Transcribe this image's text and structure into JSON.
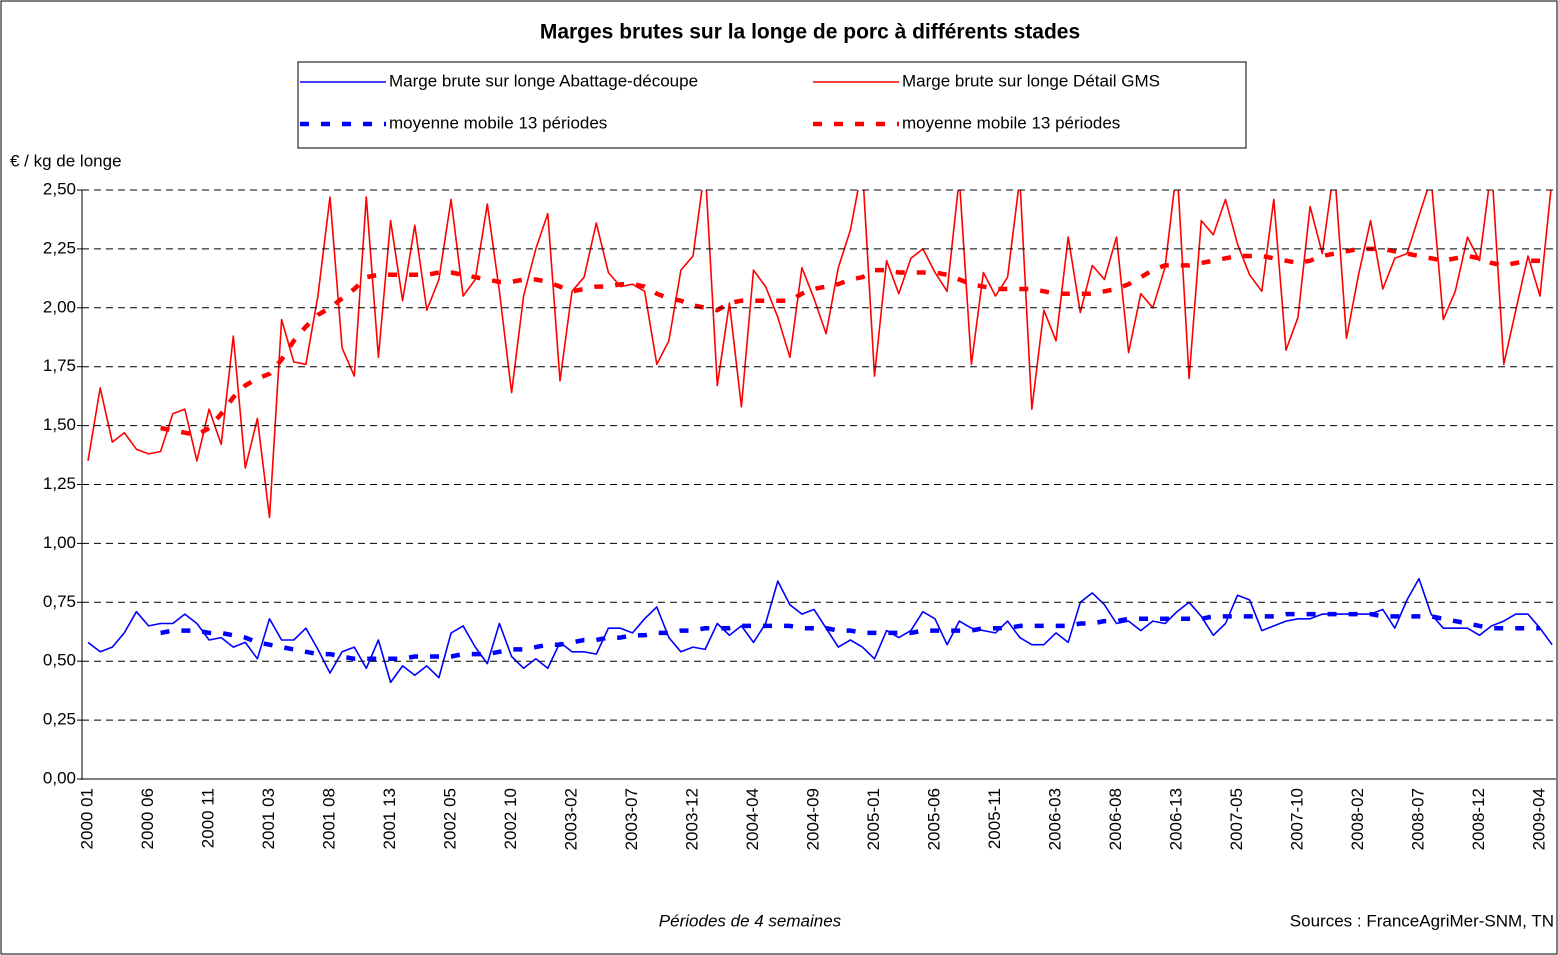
{
  "chart_data": {
    "type": "line",
    "title": "Marges brutes sur la longe de porc à différents stades",
    "y_label": "€ / kg de longe",
    "x_label": "Périodes de 4 semaines",
    "source": "Sources : FranceAgriMer-SNM, TN",
    "categories": [
      "2000 01",
      null,
      null,
      null,
      null,
      "2000 06",
      null,
      null,
      null,
      null,
      "2000 11",
      null,
      null,
      null,
      null,
      "2001 03",
      null,
      null,
      null,
      null,
      "2001 08",
      null,
      null,
      null,
      null,
      "2001 13",
      null,
      null,
      null,
      null,
      "2002 05",
      null,
      null,
      null,
      null,
      "2002 10",
      null,
      null,
      null,
      null,
      "2003-02",
      null,
      null,
      null,
      null,
      "2003-07",
      null,
      null,
      null,
      null,
      "2003-12",
      null,
      null,
      null,
      null,
      "2004-04",
      null,
      null,
      null,
      null,
      "2004-09",
      null,
      null,
      null,
      null,
      "2005-01",
      null,
      null,
      null,
      null,
      "2005-06",
      null,
      null,
      null,
      null,
      "2005-11",
      null,
      null,
      null,
      null,
      "2006-03",
      null,
      null,
      null,
      null,
      "2006-08",
      null,
      null,
      null,
      null,
      "2006-13",
      null,
      null,
      null,
      null,
      "2007-05",
      null,
      null,
      null,
      null,
      "2007-10",
      null,
      null,
      null,
      null,
      "2008-02",
      null,
      null,
      null,
      null,
      "2008-07",
      null,
      null,
      null,
      null,
      "2008-12",
      null,
      null,
      null,
      null,
      "2009-04",
      null
    ],
    "series": [
      {
        "name": "Marge brute sur longe Abattage-découpe",
        "color": "#0000ff",
        "style": "solid",
        "values": [
          0.58,
          0.54,
          0.56,
          0.62,
          0.71,
          0.65,
          0.66,
          0.66,
          0.7,
          0.66,
          0.59,
          0.6,
          0.56,
          0.58,
          0.51,
          0.68,
          0.59,
          0.59,
          0.64,
          0.55,
          0.45,
          0.54,
          0.56,
          0.47,
          0.59,
          0.41,
          0.48,
          0.44,
          0.48,
          0.43,
          0.62,
          0.65,
          0.56,
          0.49,
          0.66,
          0.52,
          0.47,
          0.51,
          0.47,
          0.58,
          0.54,
          0.54,
          0.53,
          0.64,
          0.64,
          0.62,
          0.68,
          0.73,
          0.6,
          0.54,
          0.56,
          0.55,
          0.66,
          0.61,
          0.65,
          0.58,
          0.66,
          0.84,
          0.74,
          0.7,
          0.72,
          0.64,
          0.56,
          0.59,
          0.56,
          0.51,
          0.63,
          0.6,
          0.63,
          0.71,
          0.68,
          0.57,
          0.67,
          0.64,
          0.63,
          0.62,
          0.67,
          0.6,
          0.57,
          0.57,
          0.62,
          0.58,
          0.75,
          0.79,
          0.74,
          0.66,
          0.67,
          0.63,
          0.67,
          0.66,
          0.71,
          0.75,
          0.69,
          0.61,
          0.66,
          0.78,
          0.76,
          0.63,
          0.65,
          0.67,
          0.68,
          0.68,
          0.7,
          0.7,
          0.7,
          0.7,
          0.7,
          0.72,
          0.64,
          0.76,
          0.85,
          0.7,
          0.64,
          0.64,
          0.64,
          0.61,
          0.65,
          0.67,
          0.7,
          0.7,
          0.64,
          0.57
        ]
      },
      {
        "name": "Marge brute sur longe Détail GMS",
        "color": "#ff0000",
        "style": "solid",
        "values": [
          1.35,
          1.66,
          1.43,
          1.47,
          1.4,
          1.38,
          1.39,
          1.55,
          1.57,
          1.35,
          1.57,
          1.42,
          1.88,
          1.32,
          1.53,
          1.11,
          1.95,
          1.77,
          1.76,
          2.05,
          2.47,
          1.83,
          1.71,
          2.47,
          1.79,
          2.37,
          2.03,
          2.35,
          1.99,
          2.12,
          2.46,
          2.05,
          2.12,
          2.44,
          2.07,
          1.64,
          2.05,
          2.25,
          2.4,
          1.69,
          2.07,
          2.13,
          2.36,
          2.15,
          2.09,
          2.1,
          2.07,
          1.76,
          1.86,
          2.16,
          2.22,
          2.6,
          1.67,
          2.02,
          1.58,
          2.16,
          2.09,
          1.96,
          1.79,
          2.17,
          2.04,
          1.89,
          2.17,
          2.33,
          2.6,
          1.71,
          2.2,
          2.06,
          2.21,
          2.25,
          2.15,
          2.07,
          2.55,
          1.76,
          2.15,
          2.05,
          2.13,
          2.55,
          1.57,
          1.99,
          1.86,
          2.3,
          1.98,
          2.18,
          2.12,
          2.3,
          1.81,
          2.06,
          2.0,
          2.17,
          2.6,
          1.7,
          2.37,
          2.31,
          2.46,
          2.27,
          2.14,
          2.07,
          2.46,
          1.82,
          1.96,
          2.43,
          2.23,
          2.6,
          1.87,
          2.14,
          2.37,
          2.08,
          2.21,
          2.23,
          2.39,
          2.55,
          1.95,
          2.07,
          2.3,
          2.2,
          2.6,
          1.76,
          1.99,
          2.22,
          2.05,
          2.55
        ]
      },
      {
        "name": "moyenne mobile 13 périodes",
        "color": "#0000ff",
        "style": "dashed",
        "values": [
          null,
          null,
          null,
          null,
          null,
          null,
          0.62,
          0.63,
          0.63,
          0.63,
          0.62,
          0.62,
          0.61,
          0.6,
          0.58,
          0.57,
          0.56,
          0.55,
          0.54,
          0.53,
          0.53,
          0.52,
          0.51,
          0.51,
          0.51,
          0.51,
          0.51,
          0.52,
          0.52,
          0.52,
          0.52,
          0.53,
          0.53,
          0.53,
          0.54,
          0.55,
          0.55,
          0.56,
          0.57,
          0.57,
          0.58,
          0.59,
          0.59,
          0.6,
          0.6,
          0.61,
          0.61,
          0.62,
          0.62,
          0.63,
          0.63,
          0.64,
          0.64,
          0.64,
          0.65,
          0.65,
          0.65,
          0.65,
          0.65,
          0.64,
          0.64,
          0.64,
          0.63,
          0.63,
          0.62,
          0.62,
          0.62,
          0.62,
          0.62,
          0.63,
          0.63,
          0.63,
          0.63,
          0.63,
          0.64,
          0.64,
          0.64,
          0.65,
          0.65,
          0.65,
          0.65,
          0.65,
          0.66,
          0.66,
          0.67,
          0.67,
          0.68,
          0.68,
          0.68,
          0.68,
          0.68,
          0.68,
          0.68,
          0.69,
          0.69,
          0.69,
          0.69,
          0.69,
          0.69,
          0.7,
          0.7,
          0.7,
          0.7,
          0.7,
          0.7,
          0.7,
          0.7,
          0.69,
          0.69,
          0.69,
          0.69,
          0.69,
          0.68,
          0.67,
          0.66,
          0.65,
          0.64,
          0.64,
          0.64,
          0.64,
          0.64,
          null
        ]
      },
      {
        "name": "moyenne mobile 13 périodes",
        "color": "#ff0000",
        "style": "dashed",
        "values": [
          null,
          null,
          null,
          null,
          null,
          null,
          1.49,
          1.48,
          1.47,
          1.46,
          1.49,
          1.55,
          1.62,
          1.67,
          1.7,
          1.72,
          1.78,
          1.86,
          1.92,
          1.97,
          2.0,
          2.04,
          2.08,
          2.13,
          2.14,
          2.14,
          2.14,
          2.14,
          2.14,
          2.15,
          2.15,
          2.14,
          2.13,
          2.12,
          2.11,
          2.11,
          2.12,
          2.12,
          2.11,
          2.09,
          2.07,
          2.08,
          2.09,
          2.09,
          2.1,
          2.1,
          2.09,
          2.06,
          2.04,
          2.03,
          2.01,
          2.0,
          1.99,
          2.02,
          2.03,
          2.03,
          2.03,
          2.03,
          2.03,
          2.06,
          2.08,
          2.09,
          2.1,
          2.12,
          2.13,
          2.16,
          2.16,
          2.15,
          2.15,
          2.15,
          2.15,
          2.14,
          2.12,
          2.1,
          2.09,
          2.08,
          2.08,
          2.08,
          2.08,
          2.07,
          2.06,
          2.06,
          2.06,
          2.06,
          2.07,
          2.08,
          2.1,
          2.13,
          2.16,
          2.18,
          2.18,
          2.18,
          2.19,
          2.2,
          2.21,
          2.22,
          2.22,
          2.22,
          2.21,
          2.2,
          2.19,
          2.2,
          2.22,
          2.23,
          2.24,
          2.25,
          2.25,
          2.25,
          2.24,
          2.23,
          2.22,
          2.21,
          2.2,
          2.21,
          2.22,
          2.21,
          2.19,
          2.18,
          2.19,
          2.2,
          2.2,
          null
        ]
      }
    ],
    "ylim": [
      0,
      2.5
    ],
    "yticks": [
      {
        "value": 0,
        "label": "0,00"
      },
      {
        "value": 0.25,
        "label": "0,25"
      },
      {
        "value": 0.5,
        "label": "0,50"
      },
      {
        "value": 0.75,
        "label": "0,75"
      },
      {
        "value": 1,
        "label": "1,00"
      },
      {
        "value": 1.25,
        "label": "1,25"
      },
      {
        "value": 1.5,
        "label": "1,50"
      },
      {
        "value": 1.75,
        "label": "1,75"
      },
      {
        "value": 2,
        "label": "2,00"
      },
      {
        "value": 2.25,
        "label": "2,25"
      },
      {
        "value": 2.5,
        "label": "2,50"
      }
    ],
    "grid": true
  }
}
